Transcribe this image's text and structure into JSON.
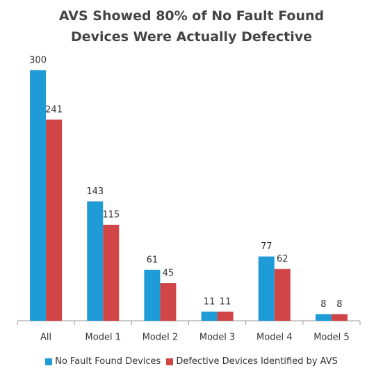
{
  "chart_data": {
    "type": "bar",
    "title": "AVS Showed 80% of No Fault Found Devices Were Actually Defective",
    "categories": [
      "All",
      "Model 1",
      "Model 2",
      "Model 3",
      "Model 4",
      "Model 5"
    ],
    "series": [
      {
        "name": "No Fault Found Devices",
        "color": "#1f9bd7",
        "values": [
          300,
          143,
          61,
          11,
          77,
          8
        ]
      },
      {
        "name": "Defective Devices Identified by AVS",
        "color": "#d04545",
        "values": [
          241,
          115,
          45,
          11,
          62,
          8
        ]
      }
    ],
    "legend": "bottom"
  }
}
